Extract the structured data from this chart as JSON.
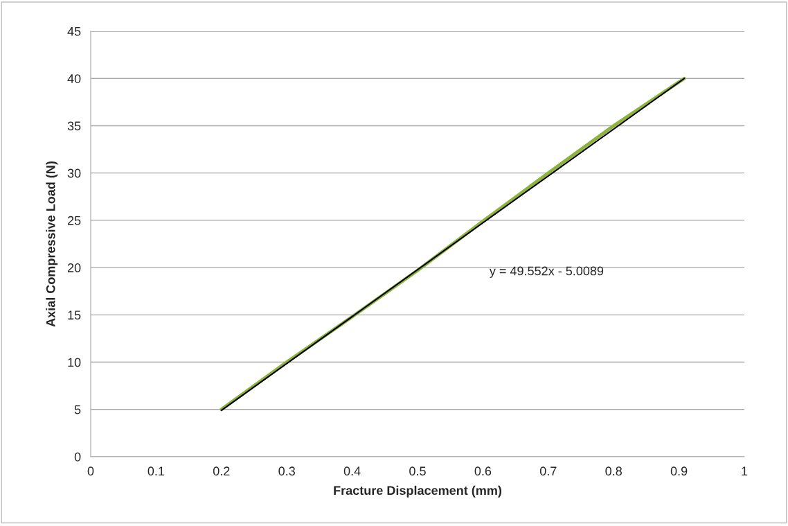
{
  "chart_data": {
    "type": "line",
    "xlabel": "Fracture Displacement (mm)",
    "ylabel": "Axial Compressive Load (N)",
    "x": [
      0.2,
      0.3,
      0.4,
      0.5,
      0.6,
      0.7,
      0.8,
      0.908
    ],
    "series": [
      {
        "color": "#8db33f",
        "values": [
          5,
          10,
          14.8,
          19.7,
          24.9,
          30,
          35,
          40
        ]
      },
      {
        "type": "line",
        "color": "#000000",
        "x": [
          0.2,
          0.908
        ],
        "values": [
          4.9,
          40
        ]
      }
    ],
    "annotations": [
      "y = 49.552x - 5.0089"
    ],
    "xlim": [
      0,
      1
    ],
    "xticks": [
      0,
      0.1,
      0.2,
      0.3,
      0.4,
      0.5,
      0.6,
      0.7,
      0.8,
      0.9,
      1
    ],
    "ylim": [
      0,
      45
    ],
    "yticks": [
      0,
      5,
      10,
      15,
      20,
      25,
      30,
      35,
      40,
      45
    ],
    "grid": "y",
    "marker": "none",
    "line_style": "solid",
    "legend": false
  }
}
